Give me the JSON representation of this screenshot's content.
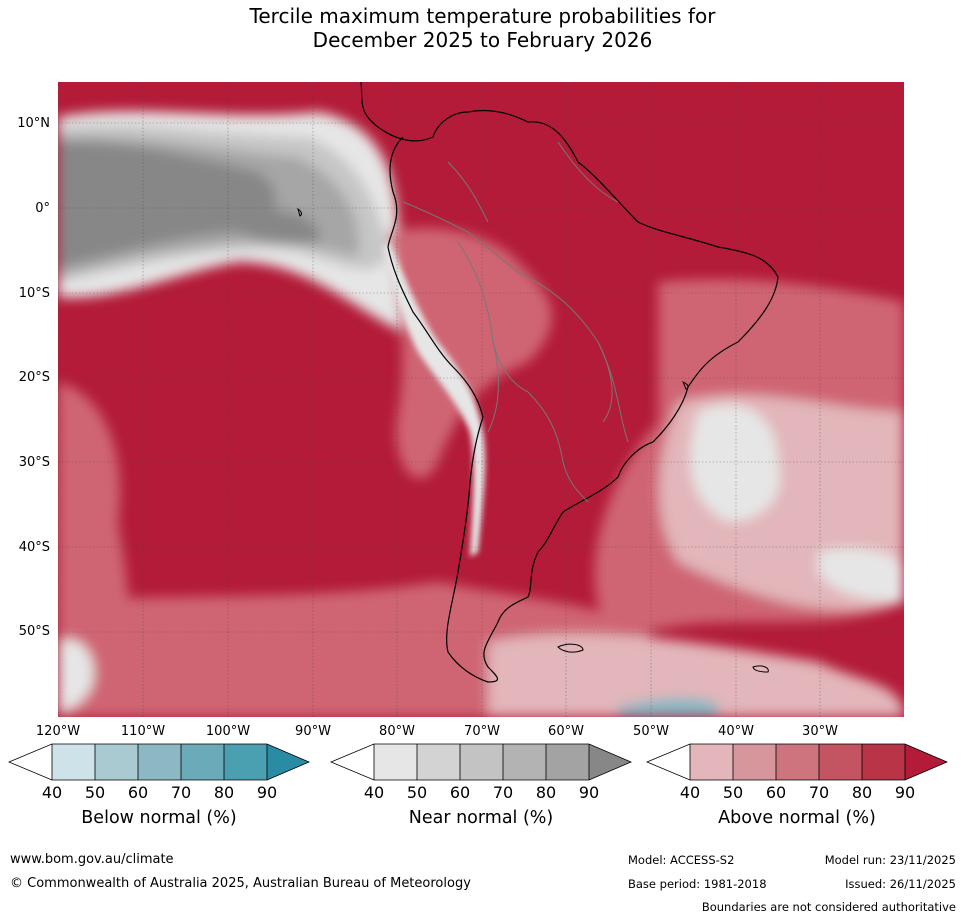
{
  "title": {
    "line1": "Tercile maximum temperature probabilities for",
    "line2": "December 2025 to February 2026"
  },
  "map": {
    "lat_labels": [
      "10°N",
      "0°",
      "10°S",
      "20°S",
      "30°S",
      "40°S",
      "50°S"
    ],
    "lon_labels": [
      "120°W",
      "110°W",
      "100°W",
      "90°W",
      "80°W",
      "70°W",
      "60°W",
      "50°W",
      "40°W",
      "30°W"
    ],
    "colors": {
      "above_90": "#b31b38",
      "above_80": "#c43a4f",
      "above_70": "#cf6573",
      "above_60": "#d88f97",
      "above_50": "#e2b6ba",
      "near_60": "#c6c6c6",
      "near_80": "#a6a6a6",
      "near_90": "#878787",
      "near_40": "#e6e6e6",
      "below_60": "#86b7c3"
    }
  },
  "colorbars": [
    {
      "label": "Below normal (%)",
      "ticks": [
        "40",
        "50",
        "60",
        "70",
        "80",
        "90"
      ],
      "colors": [
        "#ffffff",
        "#cde3e9",
        "#a9cad1",
        "#8cb8c4",
        "#6aaab9",
        "#4a9fb0",
        "#2a8ba4"
      ]
    },
    {
      "label": "Near normal (%)",
      "ticks": [
        "40",
        "50",
        "60",
        "70",
        "80",
        "90"
      ],
      "colors": [
        "#ffffff",
        "#e6e6e6",
        "#d3d3d3",
        "#c3c3c3",
        "#b3b3b3",
        "#a3a3a3",
        "#878787"
      ]
    },
    {
      "label": "Above normal (%)",
      "ticks": [
        "40",
        "50",
        "60",
        "70",
        "80",
        "90"
      ],
      "colors": [
        "#ffffff",
        "#e2b6ba",
        "#d7959c",
        "#cd747e",
        "#c45461",
        "#b93447",
        "#b31b38"
      ]
    }
  ],
  "footer": {
    "url": "www.bom.gov.au/climate",
    "copyright": "© Commonwealth of Australia 2025, Australian Bureau of Meteorology",
    "model": "Model: ACCESS-S2",
    "model_run": "Model run: 23/11/2025",
    "base_period": "Base period: 1981-2018",
    "issued": "Issued: 26/11/2025",
    "disclaimer": "Boundaries are not considered authoritative"
  }
}
